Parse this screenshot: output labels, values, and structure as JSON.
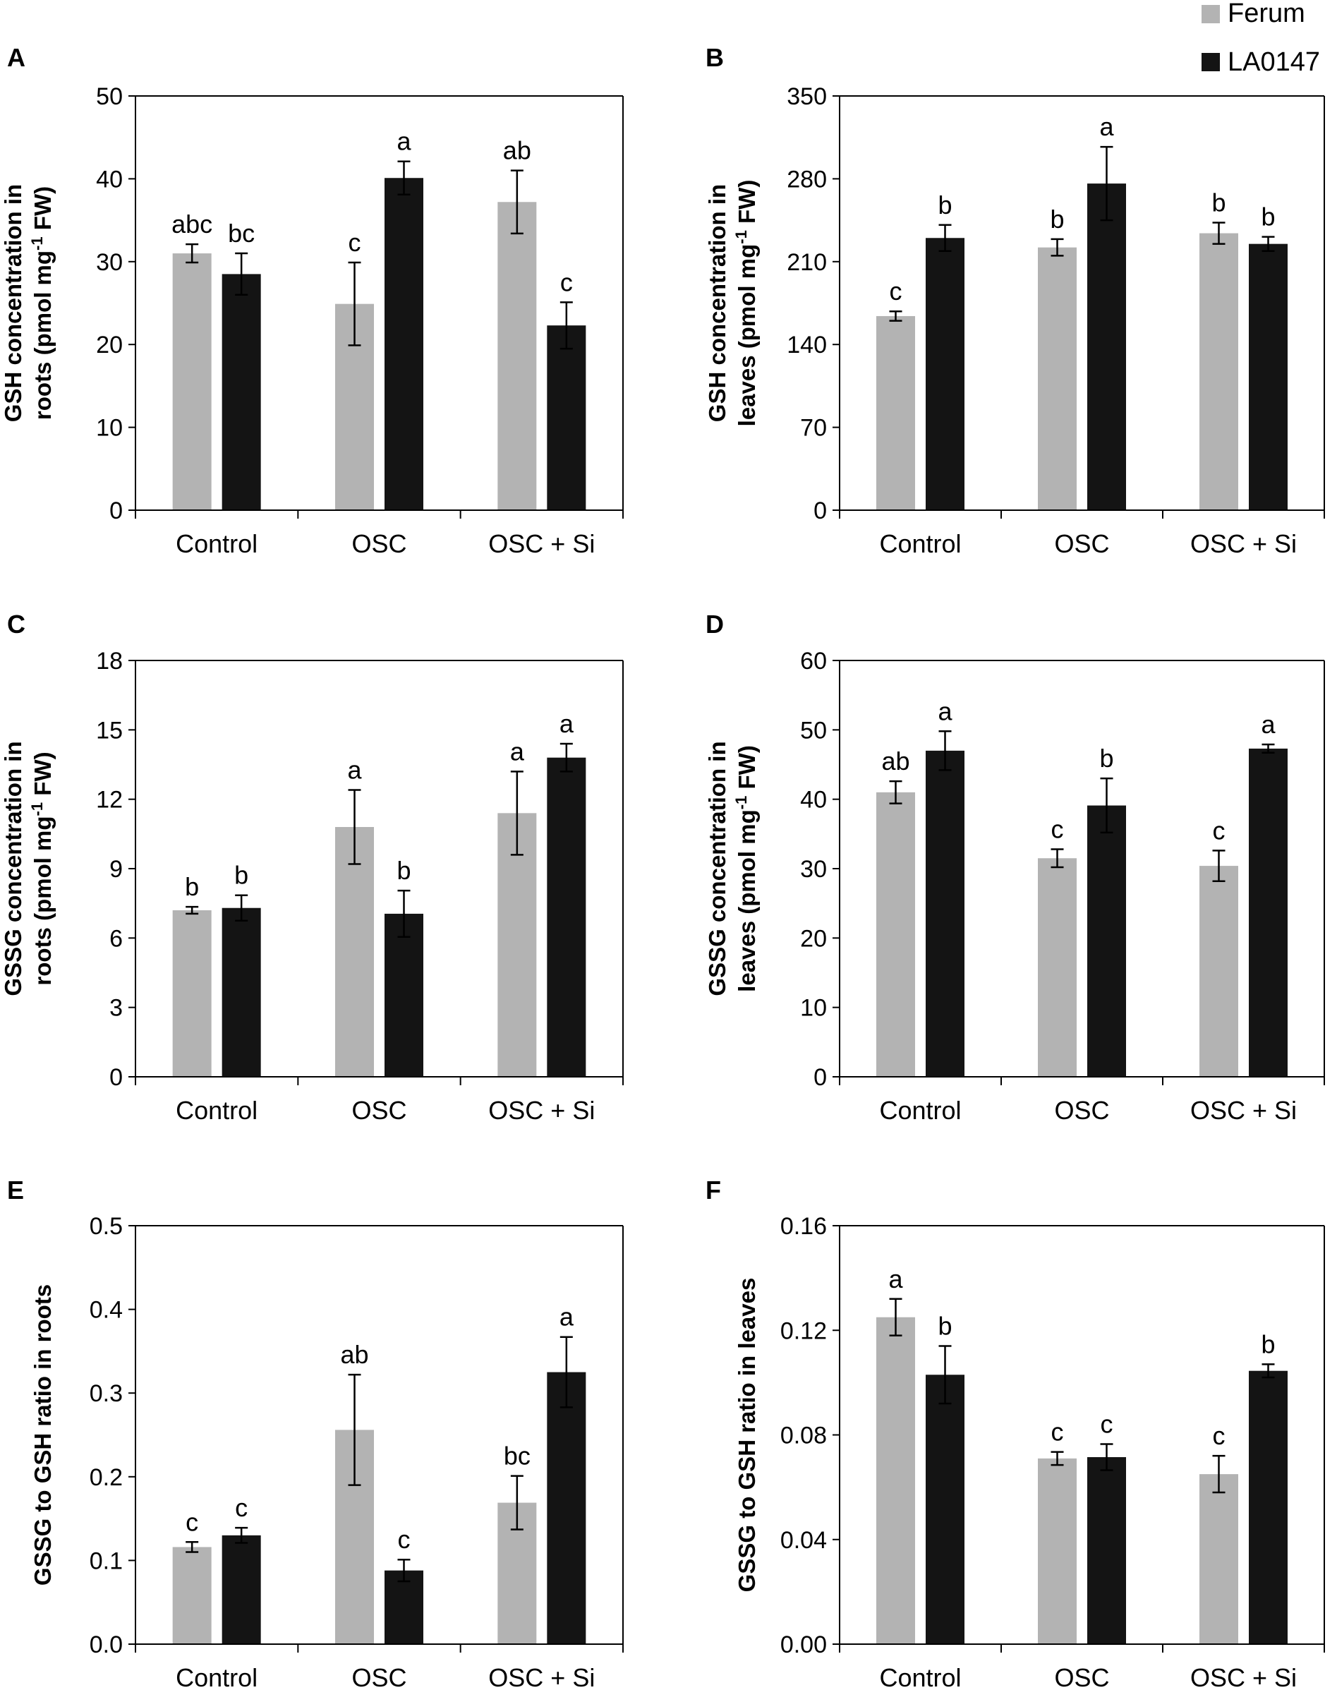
{
  "legend": {
    "placement": "top-right",
    "entries": [
      {
        "name": "Ferum",
        "color": "#b3b3b3"
      },
      {
        "name": "LA0147",
        "color": "#141414"
      }
    ]
  },
  "colors": {
    "ferum": "#b3b3b3",
    "la0147": "#141414",
    "axis": "#000000"
  },
  "chart_data": [
    {
      "panel": "A",
      "type": "bar",
      "ylabel_line1": "GSH concentration in",
      "ylabel_line2_pre": "roots (pmol mg",
      "ylabel_sup": "-1",
      "ylabel_line2_post": " FW)",
      "categories": [
        "Control",
        "OSC",
        "OSC + Si"
      ],
      "ylim": [
        0,
        50
      ],
      "yticks": [
        "0",
        "10",
        "20",
        "30",
        "40",
        "50"
      ],
      "series": [
        {
          "name": "Ferum",
          "values": [
            31,
            24.9,
            37.2
          ],
          "errors": [
            1.1,
            5,
            3.8
          ],
          "letters": [
            "abc",
            "c",
            "ab"
          ]
        },
        {
          "name": "LA0147",
          "values": [
            28.5,
            40.1,
            22.3
          ],
          "errors": [
            2.5,
            2,
            2.8
          ],
          "letters": [
            "bc",
            "a",
            "c"
          ]
        }
      ]
    },
    {
      "panel": "B",
      "type": "bar",
      "ylabel_line1": "GSH concentration in",
      "ylabel_line2_pre": "leaves (pmol mg",
      "ylabel_sup": "-1",
      "ylabel_line2_post": " FW)",
      "categories": [
        "Control",
        "OSC",
        "OSC + Si"
      ],
      "ylim": [
        0,
        350
      ],
      "yticks": [
        "0",
        "70",
        "140",
        "210",
        "280",
        "350"
      ],
      "series": [
        {
          "name": "Ferum",
          "values": [
            164,
            222,
            234
          ],
          "errors": [
            4,
            7,
            9
          ],
          "letters": [
            "c",
            "b",
            "b"
          ]
        },
        {
          "name": "LA0147",
          "values": [
            230,
            276,
            225
          ],
          "errors": [
            11,
            31,
            6
          ],
          "letters": [
            "b",
            "a",
            "b"
          ]
        }
      ]
    },
    {
      "panel": "C",
      "type": "bar",
      "ylabel_line1": "GSSG concentration in",
      "ylabel_line2_pre": "roots (pmol mg",
      "ylabel_sup": "-1",
      "ylabel_line2_post": " FW)",
      "categories": [
        "Control",
        "OSC",
        "OSC + Si"
      ],
      "ylim": [
        0,
        18
      ],
      "yticks": [
        "0",
        "3",
        "6",
        "9",
        "12",
        "15",
        "18"
      ],
      "series": [
        {
          "name": "Ferum",
          "values": [
            7.2,
            10.8,
            11.4
          ],
          "errors": [
            0.15,
            1.6,
            1.8
          ],
          "letters": [
            "b",
            "a",
            "a"
          ]
        },
        {
          "name": "LA0147",
          "values": [
            7.3,
            7.05,
            13.8
          ],
          "errors": [
            0.55,
            1,
            0.6
          ],
          "letters": [
            "b",
            "b",
            "a"
          ]
        }
      ]
    },
    {
      "panel": "D",
      "type": "bar",
      "ylabel_line1": "GSSG concentration in",
      "ylabel_line2_pre": "leaves (pmol mg",
      "ylabel_sup": "-1",
      "ylabel_line2_post": " FW)",
      "categories": [
        "Control",
        "OSC",
        "OSC + Si"
      ],
      "ylim": [
        0,
        60
      ],
      "yticks": [
        "0",
        "10",
        "20",
        "30",
        "40",
        "50",
        "60"
      ],
      "series": [
        {
          "name": "Ferum",
          "values": [
            41,
            31.5,
            30.4
          ],
          "errors": [
            1.6,
            1.3,
            2.2
          ],
          "letters": [
            "ab",
            "c",
            "c"
          ]
        },
        {
          "name": "LA0147",
          "values": [
            47,
            39.1,
            47.3
          ],
          "errors": [
            2.8,
            3.9,
            0.6
          ],
          "letters": [
            "a",
            "b",
            "a"
          ]
        }
      ]
    },
    {
      "panel": "E",
      "type": "bar",
      "ylabel_line1": "GSSG to GSH ratio in roots",
      "categories": [
        "Control",
        "OSC",
        "OSC + Si"
      ],
      "ylim": [
        0,
        0.5
      ],
      "yticks": [
        "0.0",
        "0.1",
        "0.2",
        "0.3",
        "0.4",
        "0.5"
      ],
      "series": [
        {
          "name": "Ferum",
          "values": [
            0.116,
            0.256,
            0.169
          ],
          "errors": [
            0.006,
            0.066,
            0.032
          ],
          "letters": [
            "c",
            "ab",
            "bc"
          ]
        },
        {
          "name": "LA0147",
          "values": [
            0.13,
            0.088,
            0.325
          ],
          "errors": [
            0.009,
            0.013,
            0.042
          ],
          "letters": [
            "c",
            "c",
            "a"
          ]
        }
      ]
    },
    {
      "panel": "F",
      "type": "bar",
      "ylabel_line1": "GSSG to GSH ratio in leaves",
      "categories": [
        "Control",
        "OSC",
        "OSC + Si"
      ],
      "ylim": [
        0,
        0.16
      ],
      "yticks": [
        "0.00",
        "0.04",
        "0.08",
        "0.12",
        "0.16"
      ],
      "series": [
        {
          "name": "Ferum",
          "values": [
            0.125,
            0.071,
            0.065
          ],
          "errors": [
            0.007,
            0.0025,
            0.007
          ],
          "letters": [
            "a",
            "c",
            "c"
          ]
        },
        {
          "name": "LA0147",
          "values": [
            0.103,
            0.0715,
            0.1045
          ],
          "errors": [
            0.011,
            0.005,
            0.0025
          ],
          "letters": [
            "b",
            "c",
            "b"
          ]
        }
      ]
    }
  ]
}
